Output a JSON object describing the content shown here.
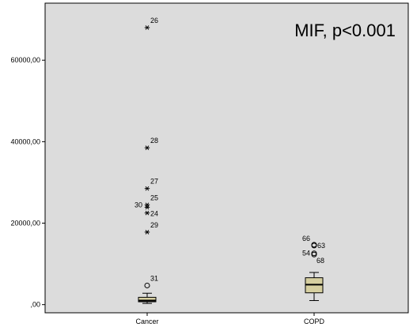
{
  "chart_data": {
    "type": "boxplot",
    "annotation": "MIF, p<0.001",
    "ylim": [
      -2000,
      74000
    ],
    "yticks": [
      {
        "value": 0,
        "label": ",00"
      },
      {
        "value": 20000,
        "label": "20000,00"
      },
      {
        "value": 40000,
        "label": "40000,00"
      },
      {
        "value": 60000,
        "label": "60000,00"
      }
    ],
    "grid": false,
    "colors": {
      "plot_bg": "#dcdcdc",
      "box_fill": "#d6cfa0",
      "axis": "#000000"
    },
    "categories": [
      "Cancer",
      "COPD"
    ],
    "boxes": [
      {
        "category": "Cancer",
        "whisker_low": 300,
        "q1": 700,
        "median": 1000,
        "q3": 1800,
        "whisker_high": 2800,
        "outliers": [
          {
            "label": "31",
            "value": 4700,
            "marker": "circle"
          },
          {
            "label": "29",
            "value": 17800,
            "marker": "star"
          },
          {
            "label": "24",
            "value": 22500,
            "marker": "star"
          },
          {
            "label": "30",
            "value": 23900,
            "marker": "star"
          },
          {
            "label": "25",
            "value": 24500,
            "marker": "star"
          },
          {
            "label": "27",
            "value": 28500,
            "marker": "star"
          },
          {
            "label": "28",
            "value": 38500,
            "marker": "star"
          },
          {
            "label": "26",
            "value": 68000,
            "marker": "star"
          }
        ]
      },
      {
        "category": "COPD",
        "whisker_low": 1000,
        "q1": 2900,
        "median": 4900,
        "q3": 6600,
        "whisker_high": 7900,
        "outliers": [
          {
            "label": "68",
            "value": 12300,
            "marker": "circle"
          },
          {
            "label": "54",
            "value": 12600,
            "marker": "circle"
          },
          {
            "label": "63",
            "value": 14500,
            "marker": "circle"
          },
          {
            "label": "66",
            "value": 14700,
            "marker": "circle"
          }
        ]
      }
    ]
  }
}
